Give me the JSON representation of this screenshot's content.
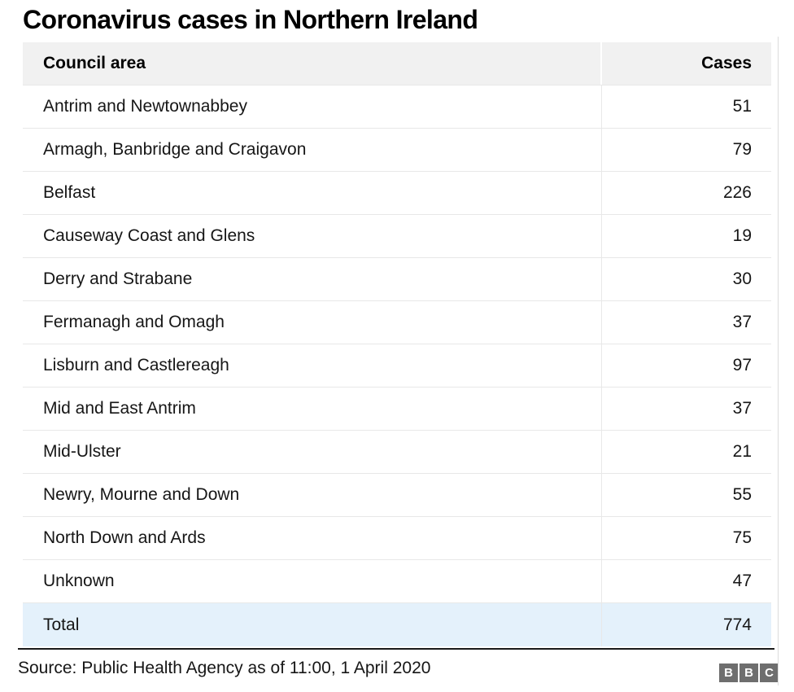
{
  "title": "Coronavirus cases in Northern Ireland",
  "table": {
    "columns": {
      "area": "Council area",
      "cases": "Cases"
    },
    "rows": [
      {
        "area": "Antrim and Newtownabbey",
        "cases": "51"
      },
      {
        "area": "Armagh, Banbridge and Craigavon",
        "cases": "79"
      },
      {
        "area": "Belfast",
        "cases": "226"
      },
      {
        "area": "Causeway Coast and Glens",
        "cases": "19"
      },
      {
        "area": "Derry and Strabane",
        "cases": "30"
      },
      {
        "area": "Fermanagh and Omagh",
        "cases": "37"
      },
      {
        "area": "Lisburn and Castlereagh",
        "cases": "97"
      },
      {
        "area": "Mid and East Antrim",
        "cases": "37"
      },
      {
        "area": "Mid-Ulster",
        "cases": "21"
      },
      {
        "area": "Newry, Mourne and Down",
        "cases": "55"
      },
      {
        "area": "North Down and Ards",
        "cases": "75"
      },
      {
        "area": "Unknown",
        "cases": "47"
      }
    ],
    "total": {
      "area": "Total",
      "cases": "774"
    }
  },
  "footer": {
    "source": "Source: Public Health Agency as of 11:00, 1 April 2020",
    "logo_letters": [
      "B",
      "B",
      "C"
    ]
  },
  "colors": {
    "header_bg": "#f1f1f1",
    "separator": "#e8e8e8",
    "total_bg": "#e4f1fb",
    "rule": "#1a1a1a",
    "text": "#161616",
    "logo_bg": "#6e6e6e"
  },
  "chart_data": {
    "type": "table",
    "title": "Coronavirus cases in Northern Ireland",
    "columns": [
      "Council area",
      "Cases"
    ],
    "categories": [
      "Antrim and Newtownabbey",
      "Armagh, Banbridge and Craigavon",
      "Belfast",
      "Causeway Coast and Glens",
      "Derry and Strabane",
      "Fermanagh and Omagh",
      "Lisburn and Castlereagh",
      "Mid and East Antrim",
      "Mid-Ulster",
      "Newry, Mourne and Down",
      "North Down and Ards",
      "Unknown"
    ],
    "values": [
      51,
      79,
      226,
      19,
      30,
      37,
      97,
      37,
      21,
      55,
      75,
      47
    ],
    "total": 774,
    "source": "Source: Public Health Agency as of 11:00, 1 April 2020",
    "layout_hints": {
      "value_alignment": "right",
      "total_row_highlight": "#e4f1fb",
      "header_background": "#f1f1f1"
    }
  }
}
